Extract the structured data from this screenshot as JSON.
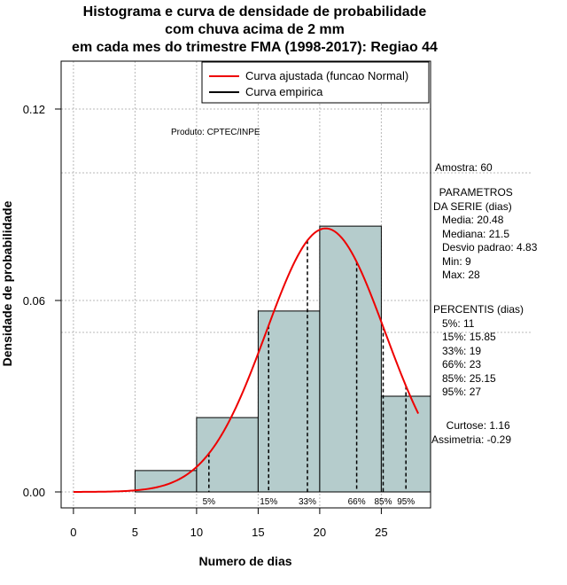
{
  "chart_data": {
    "type": "bar",
    "title_lines": [
      "Histograma e curva de densidade de probabilidade",
      "com chuva acima de 2 mm",
      "em cada mes do trimestre FMA (1998-2017): Regiao 44"
    ],
    "xlabel": "Numero de dias",
    "ylabel": "Densidade de probabilidade",
    "xlim": [
      -1,
      29
    ],
    "ylim": [
      -0.005,
      0.135
    ],
    "x_ticks": [
      "0",
      "5",
      "10",
      "15",
      "20",
      "25"
    ],
    "y_ticks": [
      "0.00",
      "0.06",
      "0.12"
    ],
    "histogram": {
      "bins": [
        [
          5,
          10
        ],
        [
          10,
          15
        ],
        [
          15,
          20
        ],
        [
          20,
          25
        ],
        [
          25,
          29
        ]
      ],
      "density": [
        0.0067,
        0.0233,
        0.0567,
        0.0833,
        0.03
      ],
      "fill": "#b5cccc"
    },
    "fitted_curve": {
      "name": "Curva ajustada (funcao Normal)",
      "mean": 20.48,
      "sd": 4.83,
      "x_range": [
        0,
        28
      ],
      "color": "#ee0000"
    },
    "empirical_curve": {
      "name": "Curva empirica",
      "color": "#000000"
    },
    "percentile_lines": [
      {
        "label": "5%",
        "x": 11
      },
      {
        "label": "15%",
        "x": 15.85
      },
      {
        "label": "33%",
        "x": 19
      },
      {
        "label": "66%",
        "x": 23
      },
      {
        "label": "85%",
        "x": 25.15
      },
      {
        "label": "95%",
        "x": 27
      }
    ],
    "legend": [
      "Curva ajustada (funcao Normal)",
      "Curva empirica"
    ],
    "legend_position": "top-right",
    "grid": true
  },
  "credit": "Produto: CPTEC/INPE",
  "sample": "Amostra: 60",
  "params_block": "  PARAMETROS\nDA SERIE (dias)\n   Media: 20.48\n   Mediana: 21.5\n   Desvio padrao: 4.83\n   Min: 9\n   Max: 28",
  "percentis_block": "PERCENTIS (dias)\n   5%: 11\n   15%: 15.85\n   33%: 19\n   66%: 23\n   85%: 25.15\n   95%: 27",
  "shape_block": "     Curtose: 1.16\nAssimetria: -0.29"
}
